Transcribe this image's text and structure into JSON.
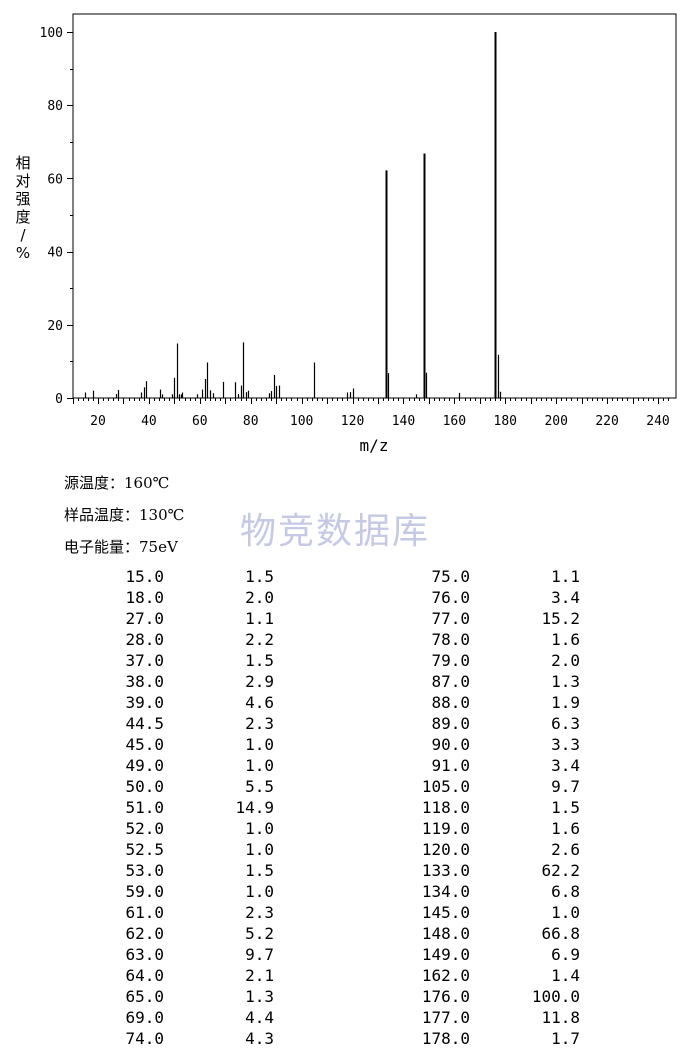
{
  "chart_data": {
    "type": "bar",
    "xlabel": "m/z",
    "ylabel": "相对强度/%",
    "xlim": [
      10,
      245
    ],
    "ylim": [
      0,
      100
    ],
    "xticks": [
      20,
      40,
      60,
      80,
      100,
      120,
      140,
      160,
      180,
      200,
      220,
      240
    ],
    "yticks": [
      0,
      20,
      40,
      60,
      80,
      100
    ],
    "x": [
      15.0,
      18.0,
      27.0,
      28.0,
      37.0,
      38.0,
      39.0,
      44.5,
      45.0,
      49.0,
      50.0,
      51.0,
      52.0,
      52.5,
      53.0,
      59.0,
      61.0,
      62.0,
      63.0,
      64.0,
      65.0,
      69.0,
      74.0,
      75.0,
      76.0,
      77.0,
      78.0,
      79.0,
      87.0,
      88.0,
      89.0,
      90.0,
      91.0,
      105.0,
      118.0,
      119.0,
      120.0,
      133.0,
      134.0,
      145.0,
      148.0,
      149.0,
      162.0,
      176.0,
      177.0,
      178.0
    ],
    "values": [
      1.5,
      2.0,
      1.1,
      2.2,
      1.5,
      2.9,
      4.6,
      2.3,
      1.0,
      1.0,
      5.5,
      14.9,
      1.0,
      1.0,
      1.5,
      1.0,
      2.3,
      5.2,
      9.7,
      2.1,
      1.3,
      4.4,
      4.3,
      1.1,
      3.4,
      15.2,
      1.6,
      2.0,
      1.3,
      1.9,
      6.3,
      3.3,
      3.4,
      9.7,
      1.5,
      1.6,
      2.6,
      62.2,
      6.8,
      1.0,
      66.8,
      6.9,
      1.4,
      100.0,
      11.8,
      1.7
    ]
  },
  "meta": {
    "source_temp": "源温度：160℃",
    "sample_temp": "样品温度：130℃",
    "energy": "电子能量：75eV"
  },
  "watermark": "物竞数据库",
  "table": {
    "left": [
      [
        "15.0",
        "1.5"
      ],
      [
        "18.0",
        "2.0"
      ],
      [
        "27.0",
        "1.1"
      ],
      [
        "28.0",
        "2.2"
      ],
      [
        "37.0",
        "1.5"
      ],
      [
        "38.0",
        "2.9"
      ],
      [
        "39.0",
        "4.6"
      ],
      [
        "44.5",
        "2.3"
      ],
      [
        "45.0",
        "1.0"
      ],
      [
        "49.0",
        "1.0"
      ],
      [
        "50.0",
        "5.5"
      ],
      [
        "51.0",
        "14.9"
      ],
      [
        "52.0",
        "1.0"
      ],
      [
        "52.5",
        "1.0"
      ],
      [
        "53.0",
        "1.5"
      ],
      [
        "59.0",
        "1.0"
      ],
      [
        "61.0",
        "2.3"
      ],
      [
        "62.0",
        "5.2"
      ],
      [
        "63.0",
        "9.7"
      ],
      [
        "64.0",
        "2.1"
      ],
      [
        "65.0",
        "1.3"
      ],
      [
        "69.0",
        "4.4"
      ],
      [
        "74.0",
        "4.3"
      ]
    ],
    "right": [
      [
        "75.0",
        "1.1"
      ],
      [
        "76.0",
        "3.4"
      ],
      [
        "77.0",
        "15.2"
      ],
      [
        "78.0",
        "1.6"
      ],
      [
        "79.0",
        "2.0"
      ],
      [
        "87.0",
        "1.3"
      ],
      [
        "88.0",
        "1.9"
      ],
      [
        "89.0",
        "6.3"
      ],
      [
        "90.0",
        "3.3"
      ],
      [
        "91.0",
        "3.4"
      ],
      [
        "105.0",
        "9.7"
      ],
      [
        "118.0",
        "1.5"
      ],
      [
        "119.0",
        "1.6"
      ],
      [
        "120.0",
        "2.6"
      ],
      [
        "133.0",
        "62.2"
      ],
      [
        "134.0",
        "6.8"
      ],
      [
        "145.0",
        "1.0"
      ],
      [
        "148.0",
        "66.8"
      ],
      [
        "149.0",
        "6.9"
      ],
      [
        "162.0",
        "1.4"
      ],
      [
        "176.0",
        "100.0"
      ],
      [
        "177.0",
        "11.8"
      ],
      [
        "178.0",
        "1.7"
      ]
    ]
  }
}
